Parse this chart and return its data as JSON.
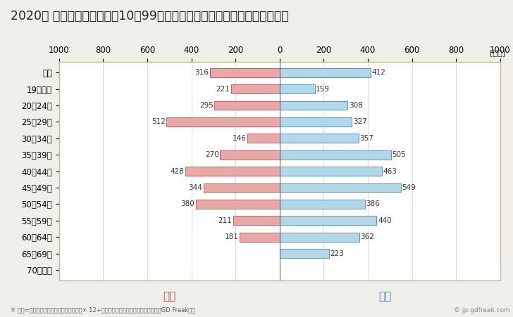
{
  "title": "2020年 民間企業（従業者数10～99人）フルタイム労働者の男女別平均年収",
  "unit_label": "[万円]",
  "categories": [
    "全体",
    "19歳以下",
    "20～24歳",
    "25～29歳",
    "30～34歳",
    "35～39歳",
    "40～44歳",
    "45～49歳",
    "50～54歳",
    "55～59歳",
    "60～64歳",
    "65～69歳",
    "70歳以上"
  ],
  "female_values": [
    316,
    221,
    295,
    512,
    146,
    270,
    428,
    344,
    380,
    211,
    181,
    0,
    0
  ],
  "male_values": [
    412,
    159,
    308,
    327,
    357,
    505,
    463,
    549,
    386,
    440,
    362,
    223,
    0
  ],
  "female_color": "#e8a8a8",
  "male_color": "#b0d8e8",
  "female_edge_color": "#c06060",
  "male_edge_color": "#6090c0",
  "female_label": "女性",
  "male_label": "男性",
  "female_label_color": "#cc3333",
  "male_label_color": "#4477cc",
  "xlim": [
    -1000,
    1000
  ],
  "xticks": [
    -1000,
    -800,
    -600,
    -400,
    -200,
    0,
    200,
    400,
    600,
    800,
    1000
  ],
  "xticklabels": [
    "1000",
    "800",
    "600",
    "400",
    "200",
    "0",
    "200",
    "400",
    "600",
    "800",
    "1000"
  ],
  "background_color": "#f0f0ea",
  "plot_bg_color": "#ffffff",
  "border_color": "#c8b888",
  "grid_color": "#cccccc",
  "footnote": "※ 年収=「きまって支給する現金給与額」× 12+「年間賞与その他特別給与額」としてGD Freak推計",
  "watermark": "© jp.gdfreak.com",
  "title_fontsize": 12.5,
  "axis_fontsize": 8.5,
  "label_fontsize": 7.5,
  "bar_height": 0.55
}
